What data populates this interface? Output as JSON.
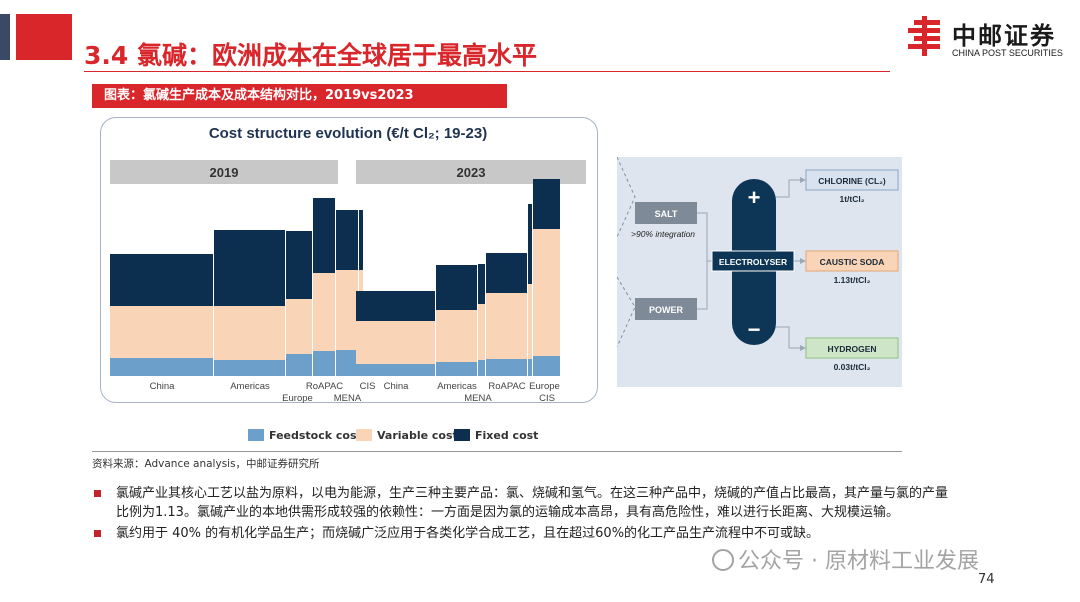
{
  "header": {
    "title": "3.4 氯碱：欧洲成本在全球居于最高水平",
    "logo_cn": "中邮证券",
    "logo_en": "CHINA POST SECURITIES"
  },
  "figure_label": "图表：氯碱生产成本及成本结构对比，2019vs2023",
  "chart_data": {
    "type": "bar",
    "title": "Cost structure evolution (€/t Cl₂; 19-23)",
    "panels": [
      {
        "name": "2019",
        "categories": [
          "China",
          "Americas",
          "Europe",
          "RoAPAC",
          "MENA",
          "CIS"
        ],
        "widths": [
          104,
          72,
          27,
          23,
          23,
          5
        ],
        "series": [
          {
            "name": "Feedstock cost",
            "values": [
              18,
              16,
              22,
              25,
              26,
              26
            ]
          },
          {
            "name": "Variable cost",
            "values": [
              52,
              54,
              55,
              78,
              80,
              80
            ]
          },
          {
            "name": "Fixed cost",
            "values": [
              52,
              76,
              68,
              75,
              60,
              60
            ]
          }
        ]
      },
      {
        "name": "2023",
        "categories": [
          "China",
          "Americas",
          "MENA",
          "RoAPAC",
          "Europe",
          "CIS"
        ],
        "widths": [
          80,
          42,
          8,
          42,
          5,
          28
        ],
        "series": [
          {
            "name": "Feedstock cost",
            "values": [
              12,
              14,
              16,
              17,
              17,
              20
            ]
          },
          {
            "name": "Variable cost",
            "values": [
              43,
              52,
              56,
              66,
              75,
              127
            ]
          },
          {
            "name": "Fixed cost",
            "values": [
              30,
              45,
              40,
              40,
              80,
              50
            ]
          }
        ]
      }
    ],
    "legend": "bottom",
    "colors": {
      "Feedstock cost": "#6d9fcb",
      "Variable cost": "#f9d4b6",
      "Fixed cost": "#0d2f4f"
    }
  },
  "diagram": {
    "inputs": [
      {
        "label": "SALT",
        "note": ">90% integration"
      },
      {
        "label": "POWER"
      }
    ],
    "center": {
      "label": "ELECTROLYSER",
      "plus": "+",
      "minus": "−"
    },
    "outputs": [
      {
        "label": "CHLORINE (CL₂)",
        "ratio": "1t/tCl₂",
        "color": "#d9e3f0"
      },
      {
        "label": "CAUSTIC SODA",
        "ratio": "1.13t/tCl₂",
        "color": "#f9d4b6"
      },
      {
        "label": "HYDROGEN",
        "ratio": "0.03t/tCl₂",
        "color": "#cfe5c8"
      }
    ]
  },
  "source": "资料来源：Advance analysis，中邮证券研究所",
  "bullets": [
    "氯碱产业其核心工艺以盐为原料，以电为能源，生产三种主要产品：氯、烧碱和氢气。在这三种产品中，烧碱的产值占比最高，其产量与氯的产量比例为1.13。氯碱产业的本地供需形成较强的依赖性：一方面是因为氯的运输成本高昂，具有高危险性，难以进行长距离、大规模运输。",
    "氯约用于 40% 的有机化学品生产；而烧碱广泛应用于各类化学合成工艺，且在超过60%的化工产品生产流程中不可或缺。"
  ],
  "watermark": "公众号 · 原材料工业发展",
  "page_number": "74"
}
